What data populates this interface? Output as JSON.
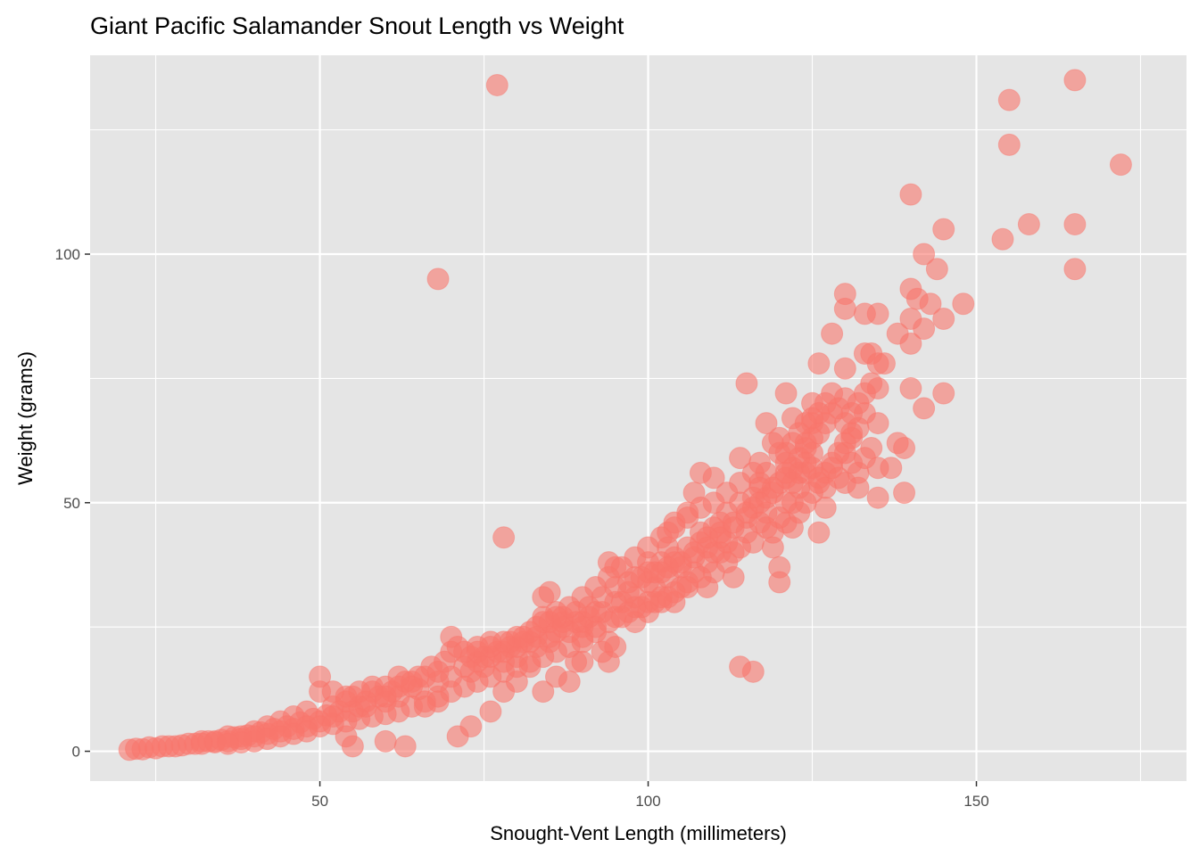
{
  "chart_data": {
    "type": "scatter",
    "title": "Giant Pacific Salamander Snout Length vs Weight",
    "xlabel": "Snought-Vent Length (millimeters)",
    "ylabel": "Weight (grams)",
    "xlim": [
      15,
      182
    ],
    "ylim": [
      -6,
      140
    ],
    "x_ticks": [
      50,
      100,
      150
    ],
    "x_tick_labels": [
      "50",
      "100",
      "150"
    ],
    "x_minor_ticks": [
      25,
      75,
      125,
      175
    ],
    "y_ticks": [
      0,
      50,
      100
    ],
    "y_tick_labels": [
      "0",
      "50",
      "100"
    ],
    "y_minor_ticks": [
      25,
      75,
      125
    ],
    "grid": true,
    "point_color": "#F8766D",
    "point_opacity": 0.6,
    "panel_color": "#E5E5E5",
    "grid_color": "#FFFFFF",
    "points": [
      [
        77,
        134
      ],
      [
        165,
        135
      ],
      [
        155,
        131
      ],
      [
        155,
        122
      ],
      [
        172,
        118
      ],
      [
        140,
        112
      ],
      [
        145,
        105
      ],
      [
        158,
        106
      ],
      [
        165,
        106
      ],
      [
        154,
        103
      ],
      [
        142,
        100
      ],
      [
        144,
        97
      ],
      [
        165,
        97
      ],
      [
        68,
        95
      ],
      [
        130,
        92
      ],
      [
        140,
        93
      ],
      [
        148,
        90
      ],
      [
        143,
        90
      ],
      [
        141,
        91
      ],
      [
        130,
        89
      ],
      [
        133,
        88
      ],
      [
        135,
        88
      ],
      [
        140,
        87
      ],
      [
        145,
        87
      ],
      [
        142,
        85
      ],
      [
        138,
        84
      ],
      [
        128,
        84
      ],
      [
        140,
        82
      ],
      [
        133,
        80
      ],
      [
        134,
        80
      ],
      [
        130,
        77
      ],
      [
        126,
        78
      ],
      [
        135,
        78
      ],
      [
        115,
        74
      ],
      [
        140,
        73
      ],
      [
        135,
        73
      ],
      [
        145,
        72
      ],
      [
        121,
        72
      ],
      [
        130,
        71
      ],
      [
        125,
        70
      ],
      [
        129,
        69
      ],
      [
        142,
        69
      ],
      [
        133,
        68
      ],
      [
        122,
        67
      ],
      [
        118,
        66
      ],
      [
        125,
        66
      ],
      [
        135,
        66
      ],
      [
        127,
        66
      ],
      [
        131,
        63
      ],
      [
        124,
        62
      ],
      [
        138,
        62
      ],
      [
        139,
        61
      ],
      [
        130,
        60
      ],
      [
        131,
        58
      ],
      [
        135,
        57
      ],
      [
        137,
        57
      ],
      [
        114,
        59
      ],
      [
        108,
        56
      ],
      [
        110,
        55
      ],
      [
        117,
        54
      ],
      [
        107,
        52
      ],
      [
        116,
        51
      ],
      [
        121,
        50
      ],
      [
        135,
        51
      ],
      [
        139,
        52
      ],
      [
        127,
        49
      ],
      [
        122,
        45
      ],
      [
        126,
        44
      ],
      [
        119,
        41
      ],
      [
        120,
        37
      ],
      [
        120,
        34
      ],
      [
        106,
        48
      ],
      [
        104,
        46
      ],
      [
        111,
        46
      ],
      [
        103,
        44
      ],
      [
        108,
        42
      ],
      [
        110,
        40
      ],
      [
        113,
        40
      ],
      [
        103,
        41
      ],
      [
        104,
        39
      ],
      [
        102,
        38
      ],
      [
        100,
        38
      ],
      [
        94,
        38
      ],
      [
        95,
        37
      ],
      [
        98,
        35
      ],
      [
        100,
        36
      ],
      [
        106,
        34
      ],
      [
        109,
        33
      ],
      [
        103,
        31
      ],
      [
        101,
        30
      ],
      [
        104,
        30
      ],
      [
        99,
        29
      ],
      [
        97,
        28
      ],
      [
        95,
        27
      ],
      [
        92,
        25
      ],
      [
        94,
        22
      ],
      [
        90,
        23
      ],
      [
        94,
        18
      ],
      [
        89,
        18
      ],
      [
        78,
        43
      ],
      [
        85,
        32
      ],
      [
        84,
        31
      ],
      [
        86,
        28
      ],
      [
        84,
        27
      ],
      [
        87,
        26
      ],
      [
        90,
        25
      ],
      [
        88,
        24
      ],
      [
        85,
        23
      ],
      [
        82,
        22
      ],
      [
        79,
        21
      ],
      [
        77,
        20
      ],
      [
        75,
        19
      ],
      [
        73,
        19
      ],
      [
        70,
        20
      ],
      [
        69,
        18
      ],
      [
        70,
        23
      ],
      [
        71,
        21
      ],
      [
        67,
        17
      ],
      [
        65,
        15
      ],
      [
        63,
        14
      ],
      [
        60,
        13
      ],
      [
        58,
        12
      ],
      [
        55,
        11
      ],
      [
        54,
        10
      ],
      [
        50,
        15
      ],
      [
        50,
        12
      ],
      [
        52,
        9
      ],
      [
        48,
        8
      ],
      [
        46,
        7
      ],
      [
        44,
        6
      ],
      [
        42,
        5
      ],
      [
        40,
        4
      ],
      [
        38,
        3
      ],
      [
        36,
        3
      ],
      [
        34,
        2
      ],
      [
        32,
        2
      ],
      [
        30,
        1.5
      ],
      [
        28,
        1
      ],
      [
        26,
        1
      ],
      [
        24,
        0.8
      ],
      [
        22,
        0.5
      ],
      [
        21,
        0.3
      ],
      [
        23,
        0.4
      ],
      [
        25,
        0.6
      ],
      [
        27,
        1
      ],
      [
        29,
        1.2
      ],
      [
        31,
        1.5
      ],
      [
        33,
        2
      ],
      [
        35,
        2.3
      ],
      [
        37,
        2.8
      ],
      [
        39,
        3.2
      ],
      [
        41,
        3.8
      ],
      [
        43,
        4.5
      ],
      [
        45,
        5
      ],
      [
        47,
        5.8
      ],
      [
        49,
        6.5
      ],
      [
        51,
        7.2
      ],
      [
        53,
        8
      ],
      [
        56,
        9
      ],
      [
        57,
        10
      ],
      [
        59,
        11
      ],
      [
        61,
        12
      ],
      [
        62,
        13
      ],
      [
        64,
        14
      ],
      [
        66,
        15
      ],
      [
        68,
        16
      ],
      [
        72,
        17
      ],
      [
        74,
        18
      ],
      [
        76,
        19
      ],
      [
        78,
        20
      ],
      [
        80,
        21
      ],
      [
        81,
        22
      ],
      [
        83,
        23
      ],
      [
        86,
        24
      ],
      [
        89,
        26
      ],
      [
        91,
        27
      ],
      [
        93,
        28
      ],
      [
        96,
        30
      ],
      [
        98,
        31
      ],
      [
        101,
        33
      ],
      [
        103,
        35
      ],
      [
        105,
        37
      ],
      [
        107,
        39
      ],
      [
        109,
        41
      ],
      [
        111,
        43
      ],
      [
        113,
        45
      ],
      [
        115,
        47
      ],
      [
        116,
        49
      ],
      [
        118,
        51
      ],
      [
        119,
        53
      ],
      [
        121,
        55
      ],
      [
        122,
        57
      ],
      [
        123,
        59
      ],
      [
        124,
        61
      ],
      [
        125,
        63
      ],
      [
        120,
        60
      ],
      [
        121,
        58
      ],
      [
        118,
        56
      ],
      [
        117,
        53
      ],
      [
        114,
        50
      ],
      [
        112,
        48
      ],
      [
        110,
        45
      ],
      [
        108,
        44
      ],
      [
        106,
        41
      ],
      [
        104,
        38
      ],
      [
        102,
        36
      ],
      [
        100,
        34
      ],
      [
        97,
        32
      ],
      [
        95,
        30
      ],
      [
        92,
        28
      ],
      [
        90,
        26
      ],
      [
        87,
        25
      ],
      [
        85,
        22
      ],
      [
        83,
        21
      ],
      [
        80,
        19
      ],
      [
        78,
        18
      ],
      [
        75,
        17
      ],
      [
        73,
        16
      ],
      [
        70,
        15
      ],
      [
        68,
        14
      ],
      [
        65,
        12.5
      ],
      [
        62,
        11
      ],
      [
        60,
        10
      ],
      [
        57,
        9
      ],
      [
        55,
        8
      ],
      [
        52,
        7
      ],
      [
        50,
        6
      ],
      [
        48,
        5
      ],
      [
        46,
        4.5
      ],
      [
        44,
        4
      ],
      [
        42,
        3.5
      ],
      [
        40,
        3
      ],
      [
        38,
        2.5
      ],
      [
        36,
        2
      ],
      [
        34,
        1.8
      ],
      [
        32,
        1.5
      ],
      [
        55,
        1
      ],
      [
        54,
        3
      ],
      [
        60,
        2
      ],
      [
        63,
        1
      ],
      [
        71,
        3
      ],
      [
        73,
        5
      ],
      [
        76,
        8
      ],
      [
        78,
        12
      ],
      [
        80,
        14
      ],
      [
        82,
        17
      ],
      [
        84,
        12
      ],
      [
        86,
        15
      ],
      [
        88,
        14
      ],
      [
        90,
        18
      ],
      [
        93,
        20
      ],
      [
        95,
        21
      ],
      [
        98,
        26
      ],
      [
        100,
        28
      ],
      [
        102,
        30
      ],
      [
        105,
        33
      ],
      [
        107,
        36
      ],
      [
        109,
        38
      ],
      [
        111,
        40
      ],
      [
        112,
        42
      ],
      [
        113,
        35
      ],
      [
        115,
        44
      ],
      [
        117,
        46
      ],
      [
        118,
        48
      ],
      [
        119,
        44
      ],
      [
        121,
        46
      ],
      [
        123,
        48
      ],
      [
        124,
        50
      ],
      [
        125,
        52
      ],
      [
        126,
        54
      ],
      [
        127,
        56
      ],
      [
        128,
        58
      ],
      [
        129,
        60
      ],
      [
        130,
        62
      ],
      [
        131,
        64
      ],
      [
        132,
        65
      ],
      [
        128,
        68
      ],
      [
        126,
        64
      ],
      [
        125,
        60
      ],
      [
        124,
        56
      ],
      [
        123,
        53
      ],
      [
        122,
        50
      ],
      [
        120,
        47
      ],
      [
        118,
        45
      ],
      [
        116,
        42
      ],
      [
        114,
        41
      ],
      [
        112,
        38
      ],
      [
        110,
        36
      ],
      [
        108,
        35
      ],
      [
        106,
        33
      ],
      [
        104,
        32
      ],
      [
        102,
        31
      ],
      [
        100,
        30
      ],
      [
        98,
        29
      ],
      [
        96,
        27
      ],
      [
        94,
        26
      ],
      [
        92,
        24
      ],
      [
        90,
        22
      ],
      [
        88,
        21
      ],
      [
        86,
        20
      ],
      [
        84,
        19
      ],
      [
        82,
        18
      ],
      [
        80,
        17
      ],
      [
        78,
        16
      ],
      [
        76,
        15
      ],
      [
        74,
        14
      ],
      [
        72,
        13
      ],
      [
        70,
        12
      ],
      [
        68,
        11
      ],
      [
        66,
        10
      ],
      [
        64,
        9
      ],
      [
        62,
        8
      ],
      [
        60,
        7.5
      ],
      [
        58,
        7
      ],
      [
        56,
        6.5
      ],
      [
        54,
        6
      ],
      [
        52,
        5.5
      ],
      [
        50,
        5
      ],
      [
        48,
        4
      ],
      [
        46,
        3.5
      ],
      [
        44,
        3
      ],
      [
        42,
        2.5
      ],
      [
        40,
        2
      ],
      [
        38,
        1.8
      ],
      [
        36,
        1.5
      ],
      [
        116,
        16
      ],
      [
        114,
        17
      ],
      [
        68,
        10
      ],
      [
        66,
        9
      ],
      [
        64,
        13
      ],
      [
        62,
        15
      ],
      [
        60,
        11
      ],
      [
        58,
        13
      ],
      [
        56,
        12
      ],
      [
        54,
        11
      ],
      [
        52,
        12
      ],
      [
        74,
        20
      ],
      [
        76,
        21
      ],
      [
        79,
        22
      ],
      [
        81,
        23
      ],
      [
        83,
        25
      ],
      [
        85,
        26
      ],
      [
        87,
        27
      ],
      [
        89,
        28
      ],
      [
        91,
        29
      ],
      [
        93,
        31
      ],
      [
        95,
        33
      ],
      [
        97,
        34
      ],
      [
        99,
        35
      ],
      [
        101,
        36
      ],
      [
        103,
        37
      ],
      [
        105,
        38
      ],
      [
        107,
        40
      ],
      [
        109,
        43
      ],
      [
        111,
        44
      ],
      [
        113,
        46
      ],
      [
        115,
        48
      ],
      [
        117,
        50
      ],
      [
        119,
        52
      ],
      [
        120,
        54
      ],
      [
        121,
        56
      ],
      [
        122,
        54
      ],
      [
        123,
        56
      ],
      [
        124,
        58
      ],
      [
        125,
        57
      ],
      [
        126,
        55
      ],
      [
        127,
        53
      ],
      [
        128,
        57
      ],
      [
        129,
        55
      ],
      [
        130,
        54
      ],
      [
        132,
        53
      ],
      [
        132,
        56
      ],
      [
        133,
        59
      ],
      [
        134,
        61
      ],
      [
        130,
        66
      ],
      [
        131,
        68
      ],
      [
        132,
        70
      ],
      [
        133,
        72
      ],
      [
        134,
        74
      ],
      [
        136,
        78
      ],
      [
        128,
        72
      ],
      [
        127,
        70
      ],
      [
        126,
        68
      ],
      [
        125,
        67
      ],
      [
        124,
        66
      ],
      [
        123,
        64
      ],
      [
        122,
        62
      ],
      [
        121,
        60
      ],
      [
        120,
        63
      ],
      [
        119,
        62
      ],
      [
        117,
        58
      ],
      [
        116,
        56
      ],
      [
        114,
        54
      ],
      [
        112,
        52
      ],
      [
        110,
        50
      ],
      [
        108,
        49
      ],
      [
        106,
        47
      ],
      [
        104,
        45
      ],
      [
        102,
        43
      ],
      [
        100,
        41
      ],
      [
        98,
        39
      ],
      [
        96,
        37
      ],
      [
        94,
        35
      ],
      [
        92,
        33
      ],
      [
        90,
        31
      ],
      [
        88,
        29
      ],
      [
        86,
        27
      ],
      [
        84,
        26
      ],
      [
        82,
        24
      ],
      [
        80,
        23
      ],
      [
        78,
        22
      ],
      [
        76,
        22
      ],
      [
        74,
        21
      ],
      [
        72,
        20
      ]
    ]
  }
}
